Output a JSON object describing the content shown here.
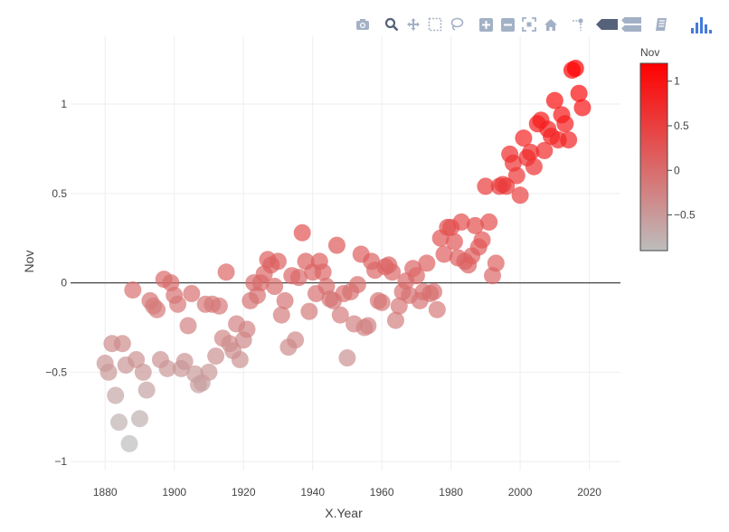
{
  "chart_data": {
    "type": "scatter",
    "xlabel": "X.Year",
    "ylabel": "Nov",
    "xlim": [
      1870,
      2029
    ],
    "ylim": [
      -1.05,
      1.38
    ],
    "xticks": [
      1880,
      1900,
      1920,
      1940,
      1960,
      1980,
      2000,
      2020
    ],
    "yticks": [
      -1,
      -0.5,
      0,
      0.5,
      1
    ],
    "ytick_labels": [
      "−1",
      "−0.5",
      "0",
      "0.5",
      "1"
    ],
    "grid": true,
    "zero_line": true,
    "colorscale": {
      "low": "#bdbdbd",
      "high": "#ff0000"
    },
    "colorbar": {
      "title": "Nov",
      "range": [
        -0.9,
        1.2
      ],
      "ticks": [
        1,
        0.5,
        0,
        -0.5
      ],
      "tick_labels": [
        "1",
        "0.5",
        "0",
        "−0.5"
      ],
      "placement": "right"
    },
    "points": [
      {
        "x": 1880,
        "y": -0.45
      },
      {
        "x": 1881,
        "y": -0.5
      },
      {
        "x": 1882,
        "y": -0.34
      },
      {
        "x": 1883,
        "y": -0.63
      },
      {
        "x": 1884,
        "y": -0.78
      },
      {
        "x": 1885,
        "y": -0.34
      },
      {
        "x": 1886,
        "y": -0.46
      },
      {
        "x": 1887,
        "y": -0.9
      },
      {
        "x": 1888,
        "y": -0.04
      },
      {
        "x": 1889,
        "y": -0.43
      },
      {
        "x": 1890,
        "y": -0.76
      },
      {
        "x": 1891,
        "y": -0.5
      },
      {
        "x": 1892,
        "y": -0.6
      },
      {
        "x": 1893,
        "y": -0.1
      },
      {
        "x": 1894,
        "y": -0.13
      },
      {
        "x": 1895,
        "y": -0.15
      },
      {
        "x": 1896,
        "y": -0.43
      },
      {
        "x": 1897,
        "y": 0.02
      },
      {
        "x": 1898,
        "y": -0.48
      },
      {
        "x": 1899,
        "y": 0.0
      },
      {
        "x": 1900,
        "y": -0.07
      },
      {
        "x": 1901,
        "y": -0.12
      },
      {
        "x": 1902,
        "y": -0.48
      },
      {
        "x": 1903,
        "y": -0.44
      },
      {
        "x": 1904,
        "y": -0.24
      },
      {
        "x": 1905,
        "y": -0.06
      },
      {
        "x": 1906,
        "y": -0.51
      },
      {
        "x": 1907,
        "y": -0.57
      },
      {
        "x": 1908,
        "y": -0.56
      },
      {
        "x": 1909,
        "y": -0.12
      },
      {
        "x": 1910,
        "y": -0.5
      },
      {
        "x": 1911,
        "y": -0.12
      },
      {
        "x": 1912,
        "y": -0.41
      },
      {
        "x": 1913,
        "y": -0.13
      },
      {
        "x": 1914,
        "y": -0.31
      },
      {
        "x": 1915,
        "y": 0.06
      },
      {
        "x": 1916,
        "y": -0.34
      },
      {
        "x": 1917,
        "y": -0.38
      },
      {
        "x": 1918,
        "y": -0.23
      },
      {
        "x": 1919,
        "y": -0.43
      },
      {
        "x": 1920,
        "y": -0.32
      },
      {
        "x": 1921,
        "y": -0.26
      },
      {
        "x": 1922,
        "y": -0.1
      },
      {
        "x": 1923,
        "y": 0.0
      },
      {
        "x": 1924,
        "y": -0.07
      },
      {
        "x": 1925,
        "y": 0.0
      },
      {
        "x": 1926,
        "y": 0.05
      },
      {
        "x": 1927,
        "y": 0.13
      },
      {
        "x": 1928,
        "y": 0.1
      },
      {
        "x": 1929,
        "y": -0.02
      },
      {
        "x": 1930,
        "y": 0.12
      },
      {
        "x": 1931,
        "y": -0.18
      },
      {
        "x": 1932,
        "y": -0.1
      },
      {
        "x": 1933,
        "y": -0.36
      },
      {
        "x": 1934,
        "y": 0.04
      },
      {
        "x": 1935,
        "y": -0.32
      },
      {
        "x": 1936,
        "y": 0.03
      },
      {
        "x": 1937,
        "y": 0.28
      },
      {
        "x": 1938,
        "y": 0.12
      },
      {
        "x": 1939,
        "y": -0.16
      },
      {
        "x": 1940,
        "y": 0.06
      },
      {
        "x": 1941,
        "y": -0.06
      },
      {
        "x": 1942,
        "y": 0.12
      },
      {
        "x": 1943,
        "y": 0.06
      },
      {
        "x": 1944,
        "y": -0.02
      },
      {
        "x": 1945,
        "y": -0.09
      },
      {
        "x": 1946,
        "y": -0.1
      },
      {
        "x": 1947,
        "y": 0.21
      },
      {
        "x": 1948,
        "y": -0.18
      },
      {
        "x": 1949,
        "y": -0.06
      },
      {
        "x": 1950,
        "y": -0.42
      },
      {
        "x": 1951,
        "y": -0.05
      },
      {
        "x": 1952,
        "y": -0.23
      },
      {
        "x": 1953,
        "y": -0.01
      },
      {
        "x": 1954,
        "y": 0.16
      },
      {
        "x": 1955,
        "y": -0.25
      },
      {
        "x": 1956,
        "y": -0.24
      },
      {
        "x": 1957,
        "y": 0.12
      },
      {
        "x": 1958,
        "y": 0.07
      },
      {
        "x": 1959,
        "y": -0.1
      },
      {
        "x": 1960,
        "y": -0.11
      },
      {
        "x": 1961,
        "y": 0.09
      },
      {
        "x": 1962,
        "y": 0.1
      },
      {
        "x": 1963,
        "y": 0.06
      },
      {
        "x": 1964,
        "y": -0.21
      },
      {
        "x": 1965,
        "y": -0.13
      },
      {
        "x": 1966,
        "y": -0.05
      },
      {
        "x": 1967,
        "y": 0.01
      },
      {
        "x": 1968,
        "y": -0.07
      },
      {
        "x": 1969,
        "y": 0.08
      },
      {
        "x": 1970,
        "y": 0.04
      },
      {
        "x": 1971,
        "y": -0.1
      },
      {
        "x": 1972,
        "y": -0.05
      },
      {
        "x": 1973,
        "y": 0.11
      },
      {
        "x": 1974,
        "y": -0.06
      },
      {
        "x": 1975,
        "y": -0.05
      },
      {
        "x": 1976,
        "y": -0.15
      },
      {
        "x": 1977,
        "y": 0.25
      },
      {
        "x": 1978,
        "y": 0.16
      },
      {
        "x": 1979,
        "y": 0.31
      },
      {
        "x": 1980,
        "y": 0.31
      },
      {
        "x": 1981,
        "y": 0.23
      },
      {
        "x": 1982,
        "y": 0.14
      },
      {
        "x": 1983,
        "y": 0.34
      },
      {
        "x": 1984,
        "y": 0.12
      },
      {
        "x": 1985,
        "y": 0.1
      },
      {
        "x": 1986,
        "y": 0.15
      },
      {
        "x": 1987,
        "y": 0.32
      },
      {
        "x": 1988,
        "y": 0.2
      },
      {
        "x": 1989,
        "y": 0.24
      },
      {
        "x": 1990,
        "y": 0.54
      },
      {
        "x": 1991,
        "y": 0.34
      },
      {
        "x": 1992,
        "y": 0.04
      },
      {
        "x": 1993,
        "y": 0.11
      },
      {
        "x": 1994,
        "y": 0.54
      },
      {
        "x": 1995,
        "y": 0.55
      },
      {
        "x": 1996,
        "y": 0.54
      },
      {
        "x": 1997,
        "y": 0.72
      },
      {
        "x": 1998,
        "y": 0.67
      },
      {
        "x": 1999,
        "y": 0.6
      },
      {
        "x": 2000,
        "y": 0.49
      },
      {
        "x": 2001,
        "y": 0.81
      },
      {
        "x": 2002,
        "y": 0.7
      },
      {
        "x": 2003,
        "y": 0.73
      },
      {
        "x": 2004,
        "y": 0.65
      },
      {
        "x": 2005,
        "y": 0.89
      },
      {
        "x": 2006,
        "y": 0.91
      },
      {
        "x": 2007,
        "y": 0.74
      },
      {
        "x": 2008,
        "y": 0.86
      },
      {
        "x": 2009,
        "y": 0.82
      },
      {
        "x": 2010,
        "y": 1.02
      },
      {
        "x": 2011,
        "y": 0.8
      },
      {
        "x": 2012,
        "y": 0.94
      },
      {
        "x": 2013,
        "y": 0.89
      },
      {
        "x": 2014,
        "y": 0.8
      },
      {
        "x": 2015,
        "y": 1.19
      },
      {
        "x": 2016,
        "y": 1.2
      },
      {
        "x": 2017,
        "y": 1.06
      },
      {
        "x": 2018,
        "y": 0.98
      }
    ]
  },
  "modebar": {
    "icons": [
      "camera-icon",
      "zoom-icon",
      "pan-icon",
      "box-select-icon",
      "lasso-select-icon",
      "zoom-in-icon",
      "zoom-out-icon",
      "autoscale-icon",
      "reset-axes-icon",
      "spike-lines-icon",
      "hover-closest-icon",
      "hover-compare-icon",
      "edit-chart-icon",
      "plotly-logo-icon"
    ]
  }
}
